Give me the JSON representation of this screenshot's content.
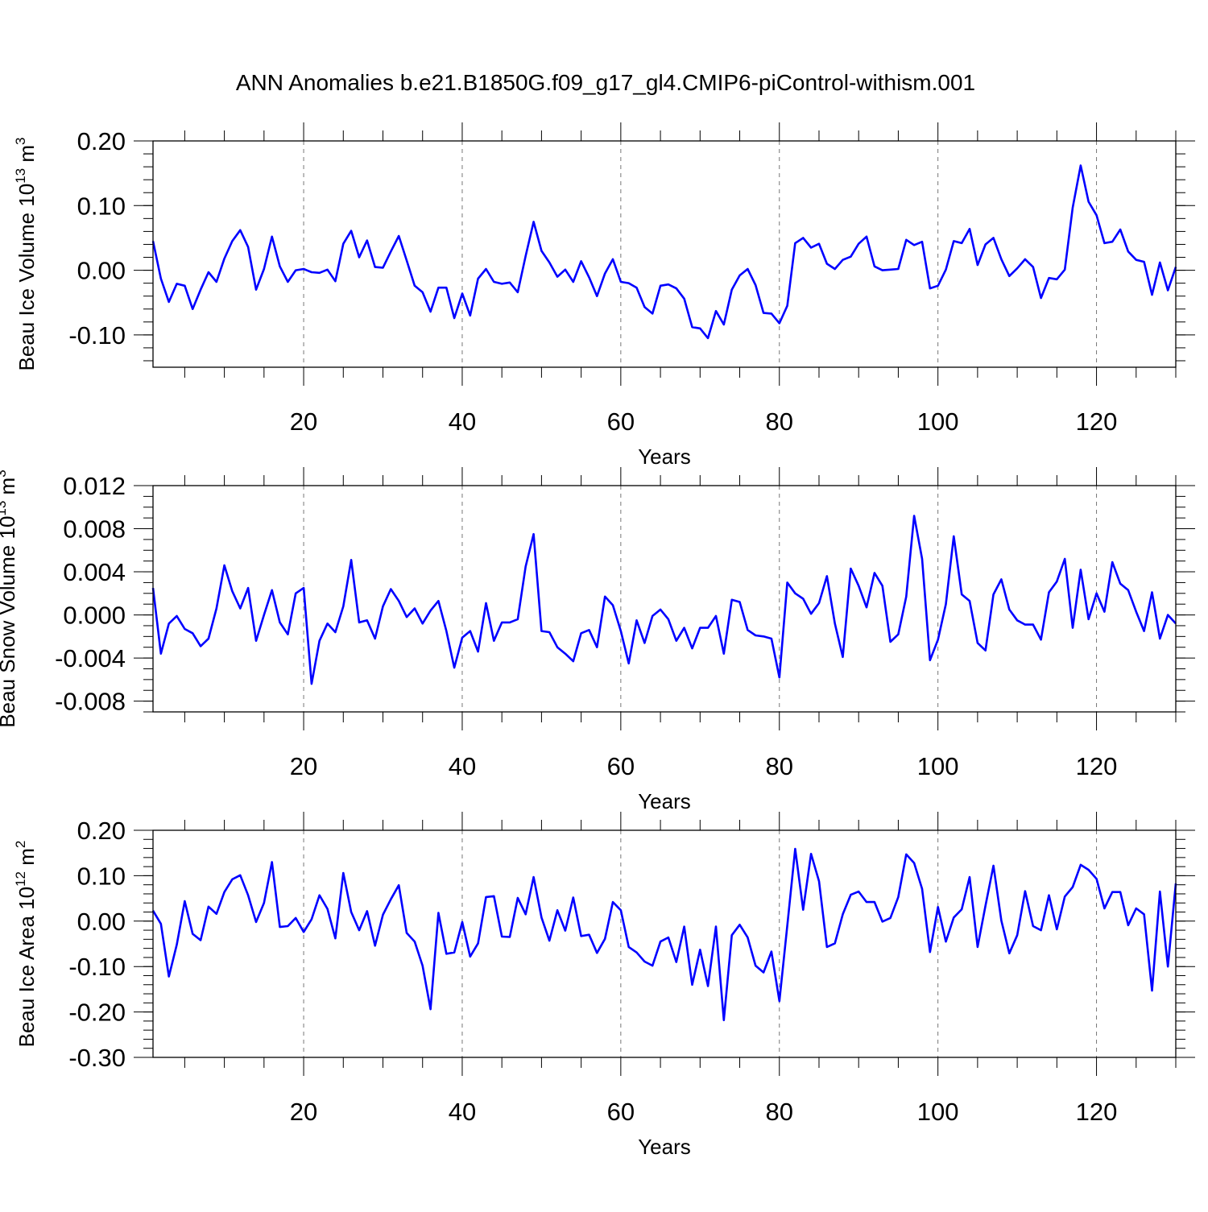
{
  "title": "ANN Anomalies b.e21.B1850G.f09_g17_gl4.CMIP6-piControl-withism.001",
  "chart_data": [
    {
      "type": "line",
      "ylabel": "Beau Ice Volume 10",
      "ylabel_exp": "13",
      "ylabel_unit": " m",
      "ylabel_unit_exp": "3",
      "xlabel": "Years",
      "xlim": [
        1,
        130
      ],
      "ylim": [
        -0.15,
        0.2
      ],
      "xticks": [
        20,
        40,
        60,
        80,
        100,
        120
      ],
      "xtick_labels": [
        "20",
        "40",
        "60",
        "80",
        "100",
        "120"
      ],
      "yticks": [
        0.2,
        0.1,
        0.0,
        -0.1
      ],
      "ytick_labels": [
        "0.20",
        "0.10",
        "0.00",
        "-0.10"
      ],
      "yminor_step": 0.02,
      "grid": "vertical dashed at major x ticks",
      "color": "#0000ff",
      "x_start": 1,
      "x_step": 1,
      "values": [
        0.045,
        -0.013,
        -0.049,
        -0.021,
        -0.024,
        -0.06,
        -0.03,
        -0.003,
        -0.018,
        0.018,
        0.045,
        0.062,
        0.036,
        -0.03,
        0.002,
        0.052,
        0.006,
        -0.018,
        0.0,
        0.002,
        -0.003,
        -0.004,
        0.001,
        -0.017,
        0.041,
        0.061,
        0.02,
        0.046,
        0.005,
        0.004,
        0.029,
        0.053,
        0.015,
        -0.024,
        -0.034,
        -0.064,
        -0.027,
        -0.027,
        -0.074,
        -0.036,
        -0.07,
        -0.013,
        0.002,
        -0.018,
        -0.021,
        -0.019,
        -0.034,
        0.022,
        0.075,
        0.03,
        0.012,
        -0.01,
        0.001,
        -0.018,
        0.014,
        -0.011,
        -0.04,
        -0.005,
        0.017,
        -0.018,
        -0.02,
        -0.027,
        -0.057,
        -0.067,
        -0.024,
        -0.022,
        -0.028,
        -0.044,
        -0.088,
        -0.09,
        -0.105,
        -0.063,
        -0.084,
        -0.03,
        -0.008,
        0.002,
        -0.023,
        -0.066,
        -0.067,
        -0.082,
        -0.055,
        0.042,
        0.05,
        0.035,
        0.041,
        0.01,
        0.002,
        0.016,
        0.021,
        0.041,
        0.052,
        0.006,
        0.0,
        0.001,
        0.002,
        0.047,
        0.039,
        0.044,
        -0.028,
        -0.024,
        0.001,
        0.045,
        0.042,
        0.064,
        0.008,
        0.04,
        0.05,
        0.017,
        -0.009,
        0.003,
        0.017,
        0.005,
        -0.043,
        -0.012,
        -0.014,
        0.001,
        0.097,
        0.162,
        0.106,
        0.085,
        0.042,
        0.044,
        0.063,
        0.029,
        0.016,
        0.013,
        -0.038,
        0.012,
        -0.031,
        0.005
      ]
    },
    {
      "type": "line",
      "ylabel": "Beau Snow Volume 10",
      "ylabel_exp": "13",
      "ylabel_unit": " m",
      "ylabel_unit_exp": "3",
      "xlabel": "Years",
      "xlim": [
        1,
        130
      ],
      "ylim": [
        -0.009,
        0.012
      ],
      "xticks": [
        20,
        40,
        60,
        80,
        100,
        120
      ],
      "xtick_labels": [
        "20",
        "40",
        "60",
        "80",
        "100",
        "120"
      ],
      "yticks": [
        0.012,
        0.008,
        0.004,
        0.0,
        -0.004,
        -0.008
      ],
      "ytick_labels": [
        "0.012",
        "0.008",
        "0.004",
        "0.000",
        "-0.004",
        "-0.008"
      ],
      "yminor_step": 0.001,
      "grid": "vertical dashed at major x ticks",
      "color": "#0000ff",
      "x_start": 1,
      "x_step": 1,
      "values": [
        0.0025,
        -0.0036,
        -0.0008,
        -0.0001,
        -0.0013,
        -0.0017,
        -0.0029,
        -0.0022,
        0.0006,
        0.0046,
        0.0022,
        0.0006,
        0.0025,
        -0.0024,
        0.0,
        0.0023,
        -0.0007,
        -0.0018,
        0.002,
        0.0025,
        -0.0064,
        -0.0024,
        -0.0008,
        -0.0016,
        0.0008,
        0.0051,
        -0.0007,
        -0.0005,
        -0.0022,
        0.0008,
        0.0024,
        0.0013,
        -0.0002,
        0.0006,
        -0.0008,
        0.0004,
        0.0013,
        -0.0015,
        -0.0049,
        -0.0021,
        -0.0015,
        -0.0034,
        0.0011,
        -0.0024,
        -0.0007,
        -0.0007,
        -0.0004,
        0.0045,
        0.0075,
        -0.0015,
        -0.0016,
        -0.003,
        -0.0036,
        -0.0043,
        -0.0017,
        -0.0014,
        -0.003,
        0.0017,
        0.0009,
        -0.0015,
        -0.0045,
        -0.0005,
        -0.0026,
        -0.0001,
        0.0005,
        -0.0004,
        -0.0024,
        -0.0012,
        -0.0031,
        -0.0012,
        -0.0012,
        -0.0001,
        -0.0036,
        0.0014,
        0.0012,
        -0.0014,
        -0.0019,
        -0.002,
        -0.0022,
        -0.0058,
        0.003,
        0.002,
        0.0015,
        0.0001,
        0.0011,
        0.0036,
        -0.0008,
        -0.0039,
        0.0043,
        0.0027,
        0.0007,
        0.0039,
        0.0027,
        -0.0025,
        -0.0018,
        0.0017,
        0.0092,
        0.0052,
        -0.0042,
        -0.0023,
        0.001,
        0.0073,
        0.0019,
        0.0013,
        -0.0026,
        -0.0033,
        0.0019,
        0.0033,
        0.0005,
        -0.0005,
        -0.0009,
        -0.0009,
        -0.0023,
        0.0021,
        0.0031,
        0.0052,
        -0.0012,
        0.0042,
        -0.0004,
        0.002,
        0.0003,
        0.0049,
        0.0029,
        0.0023,
        0.0003,
        -0.0015,
        0.0021,
        -0.0022,
        0.0,
        -0.0008
      ]
    },
    {
      "type": "line",
      "ylabel": "Beau Ice Area 10",
      "ylabel_exp": "12",
      "ylabel_unit": " m",
      "ylabel_unit_exp": "2",
      "xlabel": "Years",
      "xlim": [
        1,
        130
      ],
      "ylim": [
        -0.3,
        0.2
      ],
      "xticks": [
        20,
        40,
        60,
        80,
        100,
        120
      ],
      "xtick_labels": [
        "20",
        "40",
        "60",
        "80",
        "100",
        "120"
      ],
      "yticks": [
        0.2,
        0.1,
        0.0,
        -0.1,
        -0.2,
        -0.3
      ],
      "ytick_labels": [
        "0.20",
        "0.10",
        "0.00",
        "-0.10",
        "-0.20",
        "-0.30"
      ],
      "yminor_step": 0.02,
      "grid": "vertical dashed at major x ticks",
      "color": "#0000ff",
      "x_start": 1,
      "x_step": 1,
      "values": [
        0.023,
        -0.006,
        -0.122,
        -0.052,
        0.044,
        -0.028,
        -0.042,
        0.032,
        0.016,
        0.064,
        0.092,
        0.101,
        0.057,
        -0.002,
        0.04,
        0.13,
        -0.013,
        -0.011,
        0.007,
        -0.024,
        0.004,
        0.057,
        0.027,
        -0.038,
        0.106,
        0.02,
        -0.02,
        0.022,
        -0.054,
        0.014,
        0.048,
        0.079,
        -0.026,
        -0.045,
        -0.098,
        -0.194,
        0.018,
        -0.072,
        -0.069,
        -0.002,
        -0.078,
        -0.049,
        0.053,
        0.055,
        -0.034,
        -0.035,
        0.051,
        0.015,
        0.097,
        0.008,
        -0.043,
        0.024,
        -0.021,
        0.052,
        -0.033,
        -0.03,
        -0.07,
        -0.039,
        0.042,
        0.024,
        -0.057,
        -0.069,
        -0.089,
        -0.098,
        -0.045,
        -0.036,
        -0.09,
        -0.012,
        -0.14,
        -0.063,
        -0.143,
        -0.012,
        -0.218,
        -0.031,
        -0.008,
        -0.036,
        -0.098,
        -0.113,
        -0.067,
        -0.176,
        -0.01,
        0.159,
        0.025,
        0.148,
        0.088,
        -0.057,
        -0.049,
        0.015,
        0.058,
        0.065,
        0.042,
        0.042,
        -0.001,
        0.007,
        0.053,
        0.147,
        0.128,
        0.071,
        -0.068,
        0.031,
        -0.045,
        0.008,
        0.026,
        0.097,
        -0.057,
        0.034,
        0.122,
        0.001,
        -0.071,
        -0.031,
        0.066,
        -0.011,
        -0.02,
        0.057,
        -0.018,
        0.054,
        0.075,
        0.124,
        0.113,
        0.093,
        0.028,
        0.064,
        0.064,
        -0.009,
        0.028,
        0.015,
        -0.153,
        0.065,
        -0.1,
        0.083
      ]
    }
  ]
}
